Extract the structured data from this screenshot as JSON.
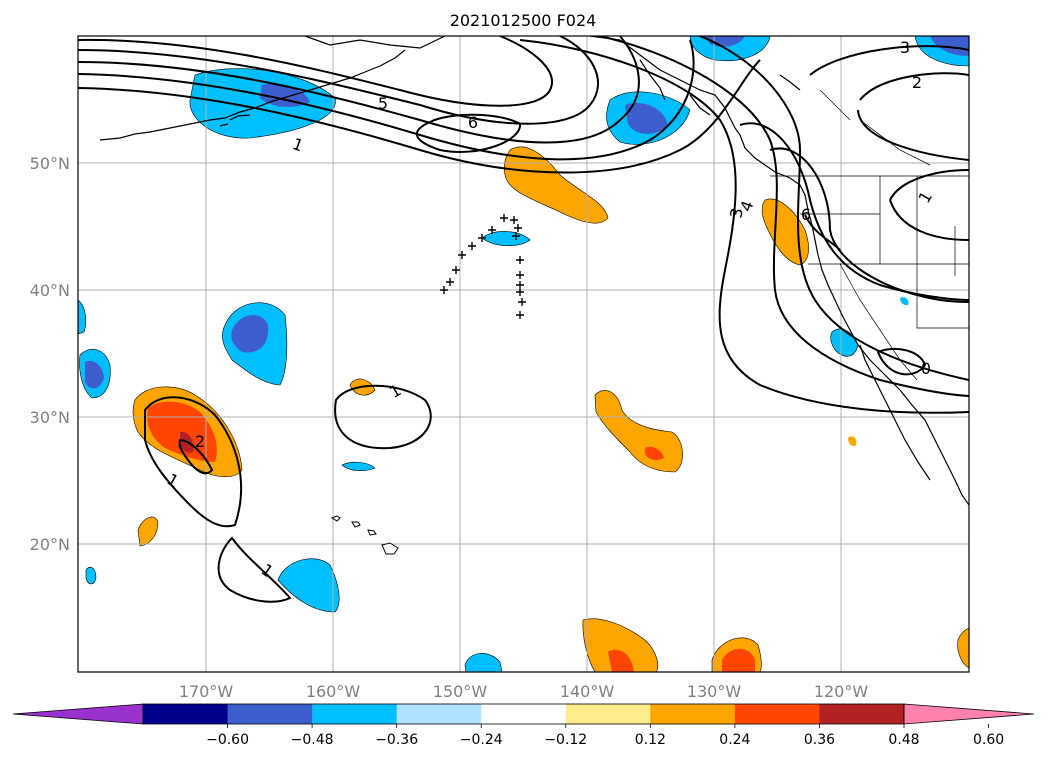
{
  "title": "2021012500 F024",
  "longitude_labels": [
    "170°W",
    "160°W",
    "150°W",
    "140°W",
    "130°W",
    "120°W"
  ],
  "latitude_labels": [
    "50°N",
    "40°N",
    "30°N",
    "20°N"
  ],
  "contour_labels": {
    "c1": "1",
    "c2": "1",
    "c3": "1",
    "c4": "1",
    "c5": "2",
    "c6": "5",
    "c7": "6",
    "c8": "3",
    "c9": "2",
    "c10": "4",
    "c11": "3",
    "c12": "6",
    "c13": "1"
  },
  "colorbar": {
    "colors": [
      "#9932cc",
      "#00008b",
      "#3d5fcd",
      "#00bfff",
      "#b0e2ff",
      "#ffffff",
      "#ffec8b",
      "#ffa500",
      "#ff4500",
      "#b22222",
      "#ff82ab"
    ],
    "tick_labels": [
      "−0.60",
      "−0.48",
      "−0.36",
      "−0.24",
      "−0.12",
      "0.12",
      "0.24",
      "0.36",
      "0.48",
      "0.60"
    ]
  }
}
